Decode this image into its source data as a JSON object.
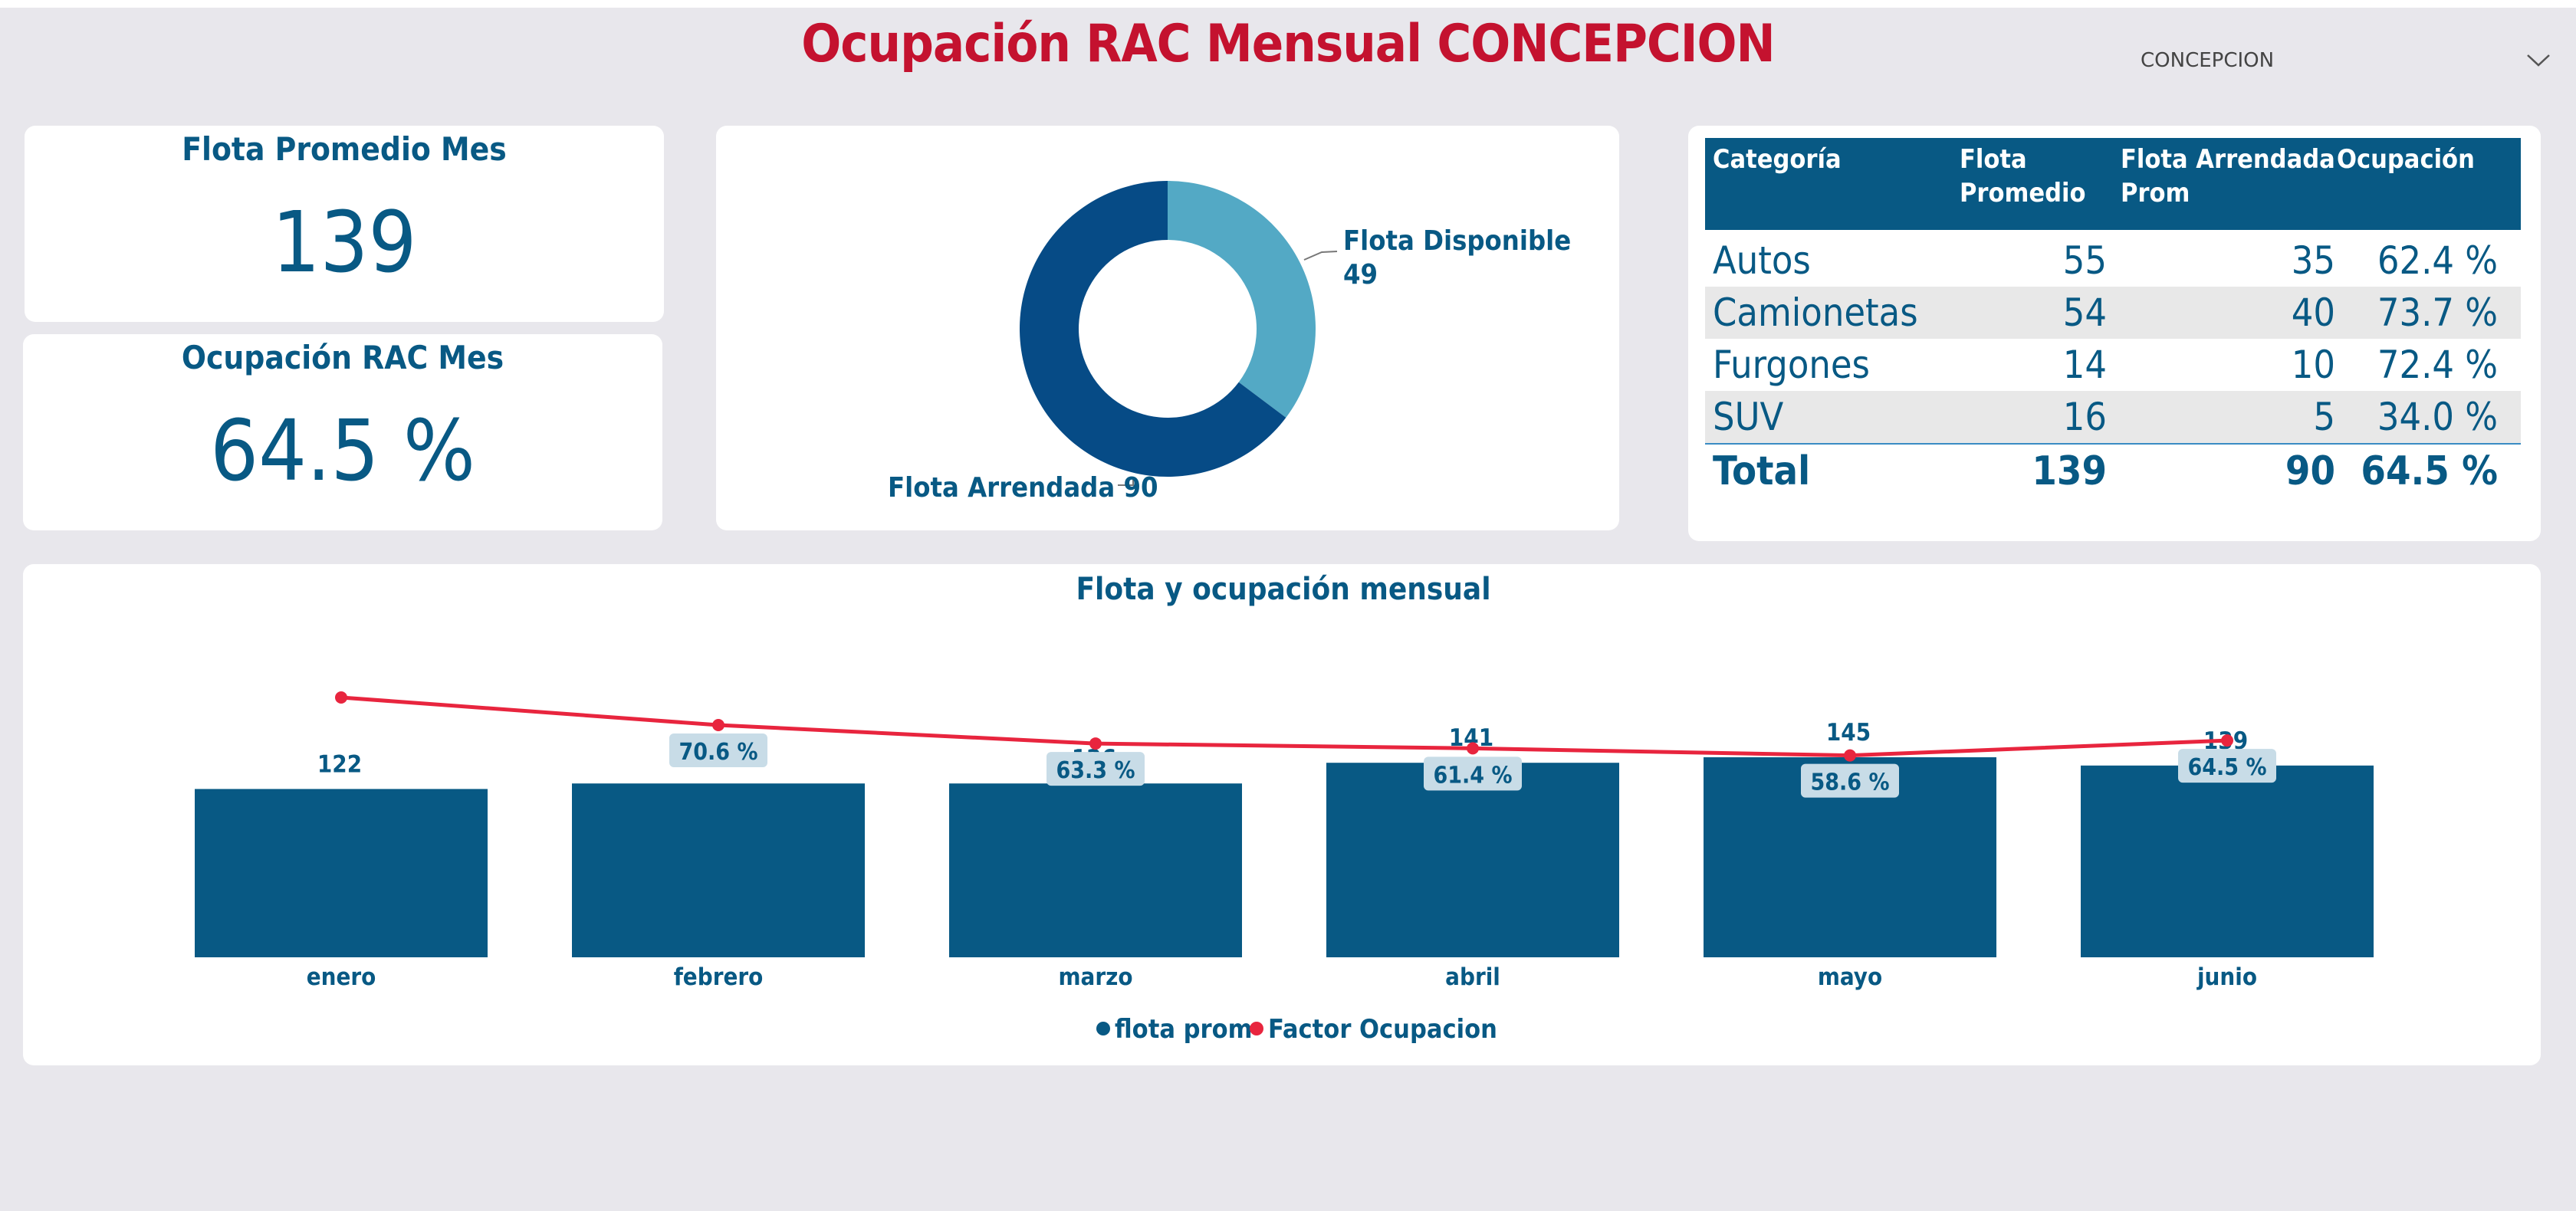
{
  "title": "Ocupación RAC Mensual CONCEPCION",
  "slicer": {
    "value": "CONCEPCION",
    "icon": "chevron-down-icon"
  },
  "kpi_flota": {
    "label": "Flota Promedio Mes",
    "value": "139"
  },
  "kpi_ocup": {
    "label": "Ocupación RAC Mes",
    "value": "64.5 %"
  },
  "table": {
    "headers": {
      "cat": "Categoría",
      "flota_l1": "Flota",
      "flota_l2": "Promedio",
      "arr_l1": "Flota Arrendada",
      "arr_l2": "Prom",
      "ocup": "Ocupación"
    },
    "rows": [
      {
        "cat": "Autos",
        "flota": "55",
        "arr": "35",
        "ocup": "62.4 %"
      },
      {
        "cat": "Camionetas",
        "flota": "54",
        "arr": "40",
        "ocup": "73.7 %"
      },
      {
        "cat": "Furgones",
        "flota": "14",
        "arr": "10",
        "ocup": "72.4 %"
      },
      {
        "cat": "SUV",
        "flota": "16",
        "arr": "5",
        "ocup": "34.0 %"
      }
    ],
    "total": {
      "cat": "Total",
      "flota": "139",
      "arr": "90",
      "ocup": "64.5 %"
    }
  },
  "colors": {
    "title": "#c4122f",
    "primary": "#085984",
    "donut_dark": "#064b86",
    "donut_light": "#53a9c5",
    "line": "#e8253e"
  },
  "chart_data": [
    {
      "type": "pie",
      "variant": "donut",
      "slices": [
        {
          "label": "Flota Disponible",
          "value": 49
        },
        {
          "label": "Flota Arrendada",
          "value": 90
        }
      ]
    },
    {
      "type": "bar",
      "title": "Flota y ocupación mensual",
      "categories": [
        "enero",
        "febrero",
        "marzo",
        "abril",
        "mayo",
        "junio"
      ],
      "series": [
        {
          "name": "flota prom",
          "type": "bar",
          "values": [
            122,
            126,
            126,
            141,
            145,
            139
          ]
        },
        {
          "name": "Factor Ocupacion",
          "type": "line",
          "values": [
            null,
            70.6,
            63.3,
            61.4,
            58.6,
            64.5
          ],
          "labels": [
            "",
            "70.6 %",
            "63.3 %",
            "61.4 %",
            "58.6 %",
            "64.5 %"
          ]
        }
      ],
      "legend_position": "bottom-center",
      "grid": false
    }
  ]
}
